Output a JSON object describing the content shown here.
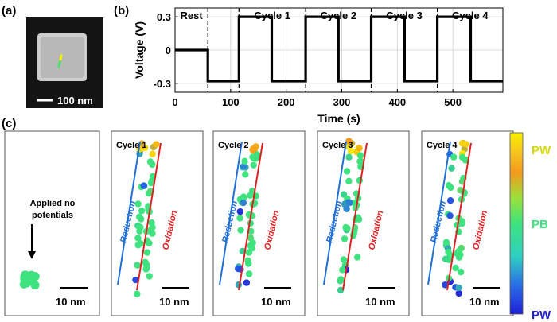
{
  "panel_labels": {
    "a": "(a)",
    "b": "(b)",
    "c": "(c)"
  },
  "sem": {
    "scale_bar": "100 nm"
  },
  "colors": {
    "pw_top": "#f7f000",
    "orange": "#f39a1d",
    "pb": "#3ee27e",
    "pw_bottom": "#2020d8",
    "reduction": "#1f6fd8",
    "oxidation": "#e02020",
    "cube": "#c9c9c9"
  },
  "chart_data": {
    "type": "line",
    "title": "",
    "xlabel": "Time (s)",
    "ylabel": "Voltage (V)",
    "xlim": [
      0,
      590
    ],
    "ylim": [
      -0.38,
      0.38
    ],
    "xticks": [
      0,
      100,
      200,
      300,
      400,
      500
    ],
    "yticks": [
      0.3,
      0,
      -0.3
    ],
    "ytick_labels": [
      "0.3",
      "0",
      "-0.3"
    ],
    "grid": true,
    "x": [
      0,
      59,
      59,
      115,
      115,
      174,
      174,
      235,
      235,
      294,
      294,
      353,
      353,
      413,
      413,
      472,
      472,
      532,
      532,
      590
    ],
    "y": [
      0,
      0,
      -0.28,
      -0.28,
      0.3,
      0.3,
      -0.28,
      -0.28,
      0.3,
      0.3,
      -0.28,
      -0.28,
      0.3,
      0.3,
      -0.28,
      -0.28,
      0.3,
      0.3,
      -0.28,
      -0.28
    ],
    "dashed_dividers_x": [
      59,
      115,
      235,
      353,
      472
    ],
    "segments": [
      {
        "label": "Rest",
        "from": 0,
        "to": 59
      },
      {
        "label": "Cycle 1",
        "from": 115,
        "to": 235
      },
      {
        "label": "Cycle 2",
        "from": 235,
        "to": 353
      },
      {
        "label": "Cycle 3",
        "from": 353,
        "to": 472
      },
      {
        "label": "Cycle 4",
        "from": 472,
        "to": 590
      }
    ]
  },
  "panel_c": {
    "control": {
      "annotation_line1": "Applied no",
      "annotation_line2": "potentials",
      "scale_bar": "10 nm"
    },
    "cycles": [
      {
        "title": "Cycle 1",
        "reduction": "Reduction",
        "oxidation": "Oxidation",
        "scale_bar": "10 nm"
      },
      {
        "title": "Cycle 2",
        "reduction": "Reduction",
        "oxidation": "Oxidation",
        "scale_bar": "10 nm"
      },
      {
        "title": "Cycle 3",
        "reduction": "Reduction",
        "oxidation": "Oxidation",
        "scale_bar": "10 nm"
      },
      {
        "title": "Cycle 4",
        "reduction": "Reduction",
        "oxidation": "Oxidation",
        "scale_bar": "10 nm"
      }
    ],
    "colorbar": {
      "top": "PW",
      "middle": "PB",
      "bottom": "PW"
    }
  }
}
